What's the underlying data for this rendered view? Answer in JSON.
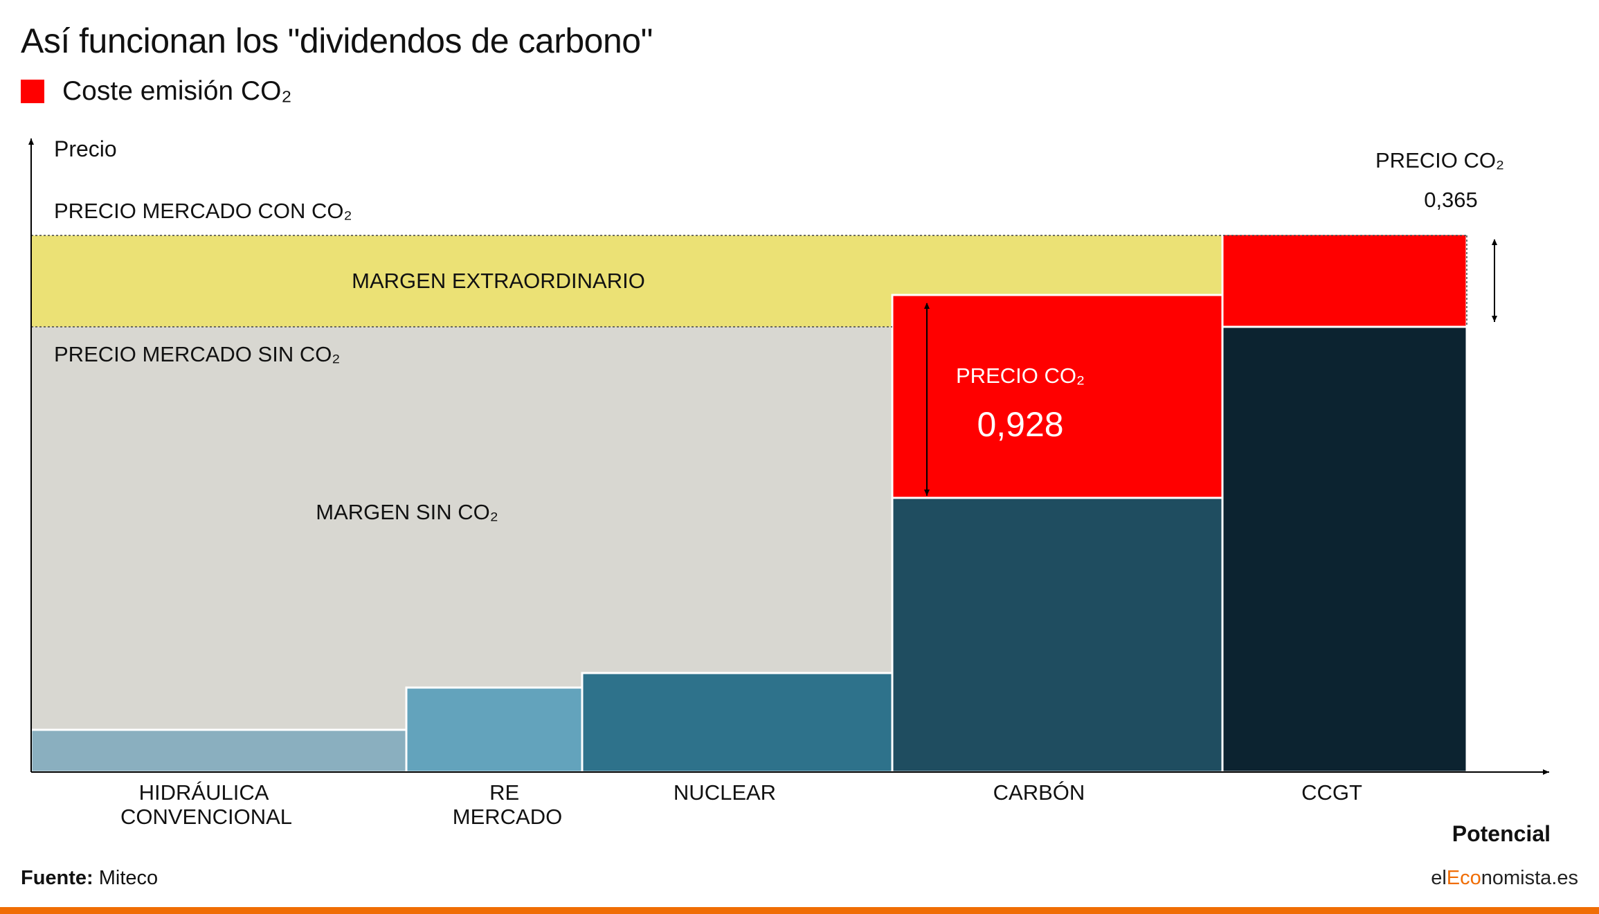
{
  "title": "Así funcionan los \"dividendos de carbono\"",
  "legend": {
    "label": "Coste emisión CO₂",
    "color": "#ff0000"
  },
  "chart_data": {
    "type": "bar",
    "title": "Así funcionan los \"dividendos de carbono\"",
    "xlabel": "Potencial",
    "ylabel": "Precio",
    "categories": [
      "HIDRÁULICA CONVENCIONAL",
      "RE MERCADO",
      "NUCLEAR",
      "CARBÓN",
      "CCGT"
    ],
    "legend_position": "top-left",
    "grid": false,
    "levels": {
      "market_with_co2_label": "PRECIO MERCADO CON CO₂",
      "market_without_co2_label": "PRECIO MERCADO SIN CO₂"
    },
    "areas": {
      "margin_without_co2": "MARGEN SIN CO₂",
      "extraordinary_margin": "MARGEN EXTRAORDINARIO"
    },
    "co2_annotations": [
      {
        "technology": "CARBÓN",
        "label": "PRECIO CO₂",
        "value": "0,928"
      },
      {
        "technology": "CCGT",
        "label": "PRECIO CO₂",
        "value": "0,365"
      }
    ],
    "colors": {
      "co2": "#ff0000",
      "extraordinary_margin": "#ebe175",
      "margin_without_co2": "#d8d7d1",
      "hidraulica": "#8aafbf",
      "re_mercado": "#63a3bc",
      "nuclear": "#2e728b",
      "carbon": "#1f4d60",
      "ccgt": "#0c2330"
    }
  },
  "footer": {
    "source_label": "Fuente:",
    "source_value": " Miteco",
    "brand_prefix": "el",
    "brand_accent": "Eco",
    "brand_suffix": "nomista.es"
  }
}
